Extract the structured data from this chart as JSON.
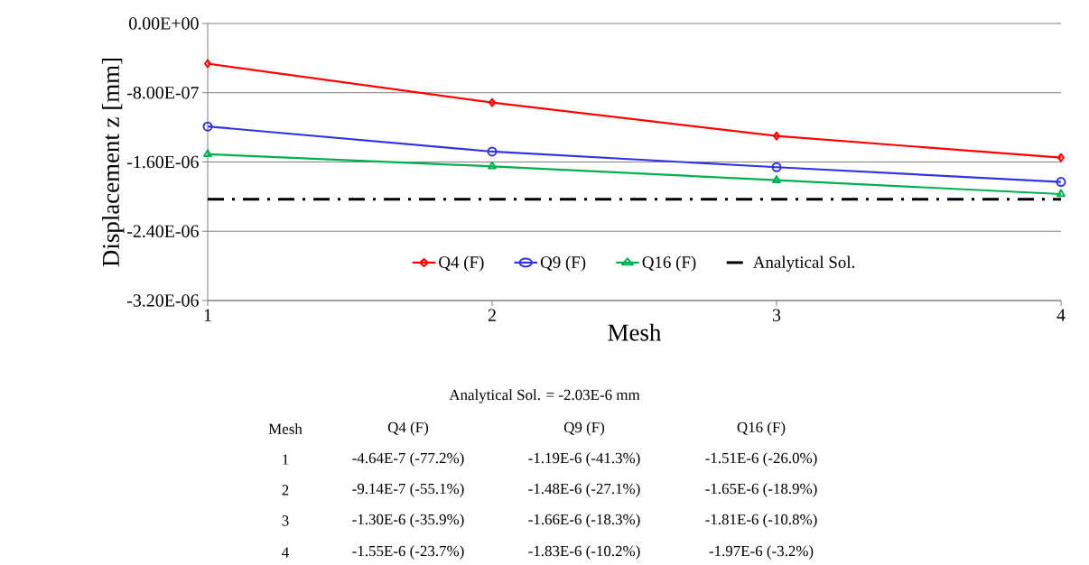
{
  "chart_data": {
    "type": "line",
    "xlabel": "Mesh",
    "ylabel": "Displacement z [mm]",
    "x": [
      1,
      2,
      3,
      4
    ],
    "xlim": [
      1,
      4
    ],
    "xticks": [
      1,
      2,
      3,
      4
    ],
    "ylim": [
      -3.2e-06,
      0
    ],
    "yticks": [
      {
        "value": -3.2e-06,
        "label": "-3.20E-06"
      },
      {
        "value": -2.4e-06,
        "label": "-2.40E-06"
      },
      {
        "value": -1.6e-06,
        "label": "-1.60E-06"
      },
      {
        "value": -8e-07,
        "label": "-8.00E-07"
      },
      {
        "value": 0,
        "label": "0.00E+00"
      }
    ],
    "grid": "y",
    "legend": "bottom",
    "series": [
      {
        "name": "Q4 (F)",
        "color": "#ff0000",
        "marker": "diamond",
        "line_style": "solid",
        "values": [
          -4.64e-07,
          -9.14e-07,
          -1.3e-06,
          -1.55e-06
        ]
      },
      {
        "name": "Q9 (F)",
        "color": "#3333e0",
        "marker": "circle",
        "line_style": "solid",
        "values": [
          -1.19e-06,
          -1.48e-06,
          -1.66e-06,
          -1.83e-06
        ]
      },
      {
        "name": "Q16 (F)",
        "color": "#00b050",
        "marker": "triangle",
        "line_style": "solid",
        "values": [
          -1.51e-06,
          -1.65e-06,
          -1.81e-06,
          -1.97e-06
        ]
      },
      {
        "name": "Analytical Sol.",
        "color": "#000000",
        "marker": "none",
        "line_style": "dashdot",
        "values": [
          -2.03e-06,
          -2.03e-06,
          -2.03e-06,
          -2.03e-06
        ]
      }
    ],
    "annotations": [
      "Analytical Sol. = -2.03E-6 mm",
      "Mesh",
      "Q4 (F)",
      "Q9 (F)",
      "Q16 (F)",
      "1",
      "-4.64E-7 (-77.2%)",
      "-1.19E-6 (-41.3%)",
      "-1.51E-6 (-26.0%)",
      "2",
      "-9.14E-7 (-55.1%)",
      "-1.48E-6 (-27.1%)",
      "-1.65E-6 (-18.9%)",
      "3",
      "-1.30E-6 (-35.9%)",
      "-1.66E-6 (-18.3%)",
      "-1.81E-6 (-10.8%)",
      "4",
      "-1.55E-6 (-23.7%)",
      "-1.83E-6 (-10.2%)",
      "-1.97E-6 (-3.2%)"
    ]
  }
}
